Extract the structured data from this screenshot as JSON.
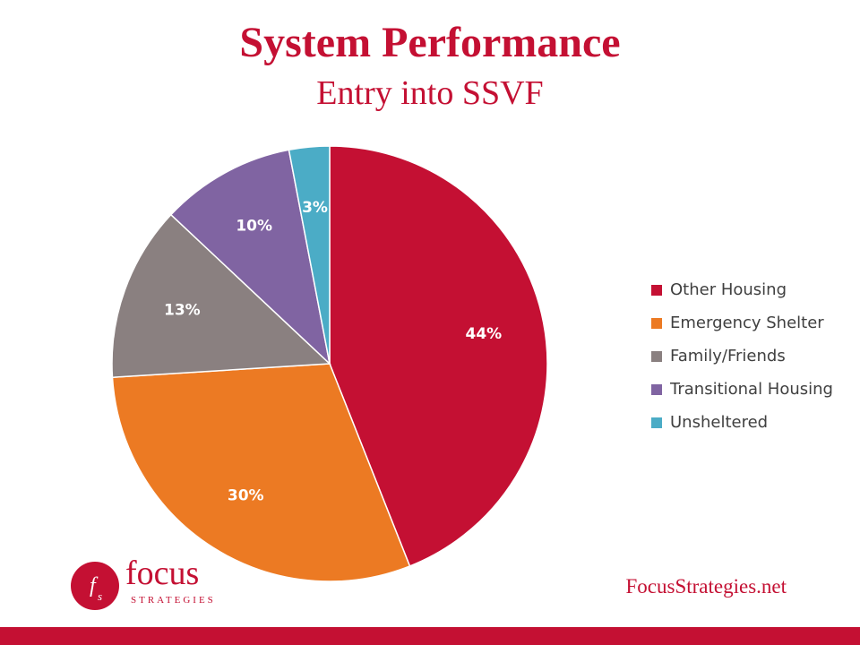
{
  "slide": {
    "title": "System Performance",
    "subtitle": "Entry into SSVF",
    "website": "FocusStrategies.net"
  },
  "logo": {
    "word": "focus",
    "sub": "STRATEGIES",
    "mark_text": "fs",
    "color": "#c41033"
  },
  "chart_data": {
    "type": "pie",
    "title": "",
    "categories": [
      "Other Housing",
      "Emergency Shelter",
      "Family/Friends",
      "Transitional Housing",
      "Unsheltered"
    ],
    "values": [
      44,
      30,
      13,
      10,
      3
    ],
    "labels": [
      "44%",
      "30%",
      "13%",
      "10%",
      "3%"
    ],
    "colors": [
      "#c41033",
      "#ec7a23",
      "#8a8080",
      "#8064a2",
      "#4bacc6"
    ],
    "start": "12 o'clock, clockwise",
    "legend_position": "right"
  },
  "footer": {
    "bar_color": "#c41033"
  }
}
